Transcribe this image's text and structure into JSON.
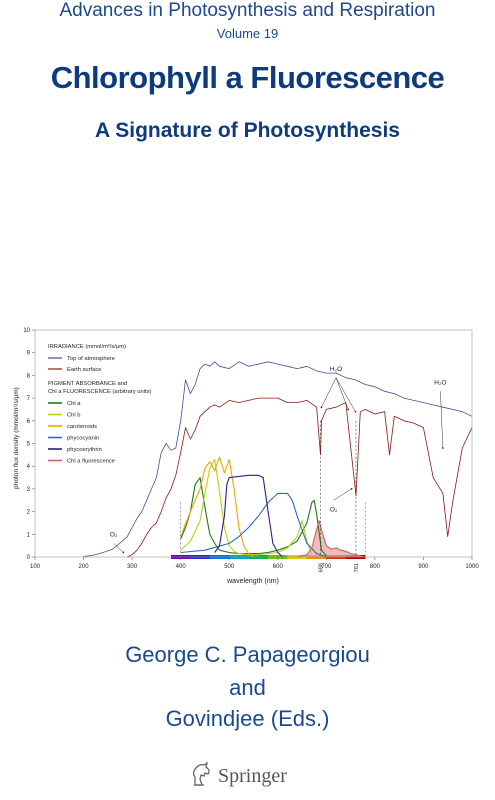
{
  "cover": {
    "series": "Advances in Photosynthesis and Respiration",
    "volume": "Volume 19",
    "title": "Chlorophyll a Fluorescence",
    "subtitle": "A Signature of Photosynthesis",
    "editors": [
      "George C. Papageorgiou",
      "and",
      "Govindjee (Eds.)"
    ],
    "publisher": "Springer",
    "publisher_icon": "springer-horse-logo-icon"
  },
  "chart_data": {
    "type": "line",
    "xlabel": "wavelength (nm)",
    "ylabel": "photon flux density (mmol/m²/s/μm)",
    "xlim": [
      100,
      1000
    ],
    "ylim": [
      0,
      10
    ],
    "xticks": [
      100,
      200,
      300,
      400,
      500,
      600,
      700,
      800,
      900,
      1000
    ],
    "yticks": [
      0,
      1,
      2,
      3,
      4,
      5,
      6,
      7,
      8,
      9,
      10
    ],
    "extra_x_labels": [
      {
        "x": 688,
        "text": "688"
      },
      {
        "x": 761,
        "text": "761"
      }
    ],
    "legend": {
      "placement": "top-left",
      "group1_title": "IRRADIANCE (mmol/m²/s/μm)",
      "group2_title_line1": "PIGMENT ABSORBANCE and",
      "group2_title_line2": "Chl a FLUORESCENCE (arbitrary units)"
    },
    "annotations": [
      {
        "text": "H₂O",
        "x": 720,
        "y": 8.2
      },
      {
        "text": "H₂O",
        "x": 935,
        "y": 7.6
      },
      {
        "text": "O₂",
        "x": 715,
        "y": 2.0
      },
      {
        "text": "O₂",
        "x": 262,
        "y": 0.9
      }
    ],
    "series": [
      {
        "name": "Top of atmosphere",
        "group": 1,
        "color": "#4a4aa0",
        "x": [
          200,
          220,
          240,
          260,
          280,
          290,
          300,
          310,
          320,
          330,
          340,
          350,
          360,
          370,
          380,
          390,
          400,
          410,
          420,
          430,
          440,
          450,
          460,
          470,
          480,
          500,
          520,
          540,
          560,
          580,
          600,
          620,
          640,
          660,
          680,
          700,
          720,
          740,
          760,
          780,
          800,
          820,
          840,
          860,
          880,
          900,
          920,
          940,
          960,
          980,
          1000
        ],
        "y": [
          0.02,
          0.08,
          0.2,
          0.35,
          0.7,
          0.9,
          1.3,
          1.7,
          2.0,
          2.5,
          3.0,
          3.5,
          4.6,
          5.0,
          4.7,
          4.8,
          6.0,
          7.8,
          7.2,
          7.6,
          8.3,
          8.5,
          8.4,
          8.6,
          8.4,
          8.3,
          8.6,
          8.4,
          8.5,
          8.6,
          8.5,
          8.4,
          8.3,
          8.4,
          8.2,
          8.1,
          8.1,
          7.9,
          7.8,
          7.6,
          7.5,
          7.3,
          7.2,
          7.0,
          6.9,
          6.8,
          6.7,
          6.6,
          6.5,
          6.4,
          6.2
        ]
      },
      {
        "name": "Earth surface",
        "group": 1,
        "color": "#8b1a10",
        "x": [
          290,
          300,
          310,
          320,
          330,
          340,
          350,
          360,
          370,
          380,
          390,
          400,
          410,
          420,
          430,
          440,
          450,
          460,
          470,
          480,
          500,
          520,
          540,
          560,
          580,
          600,
          620,
          640,
          660,
          680,
          688,
          690,
          700,
          720,
          740,
          761,
          770,
          780,
          800,
          820,
          830,
          840,
          860,
          880,
          900,
          920,
          940,
          950,
          960,
          980,
          1000
        ],
        "y": [
          0.0,
          0.1,
          0.3,
          0.6,
          1.0,
          1.3,
          1.5,
          2.0,
          2.6,
          3.0,
          3.6,
          4.6,
          5.7,
          5.2,
          5.6,
          6.2,
          6.4,
          6.6,
          6.7,
          6.6,
          6.9,
          6.8,
          6.9,
          7.0,
          7.0,
          7.0,
          6.8,
          6.8,
          6.9,
          6.6,
          4.5,
          6.0,
          6.5,
          6.6,
          6.8,
          2.7,
          6.4,
          6.5,
          6.3,
          6.4,
          4.5,
          6.2,
          6.0,
          5.9,
          5.7,
          3.5,
          2.8,
          0.9,
          2.4,
          4.8,
          5.7
        ]
      },
      {
        "name": "Chl a",
        "group": 2,
        "color": "#1e7a1e",
        "x": [
          400,
          410,
          420,
          430,
          440,
          450,
          460,
          470,
          480,
          500,
          520,
          540,
          560,
          580,
          600,
          620,
          640,
          660,
          670,
          675,
          680,
          690,
          700
        ],
        "y": [
          0.8,
          1.3,
          2.0,
          3.2,
          3.5,
          2.2,
          1.0,
          0.6,
          0.3,
          0.2,
          0.15,
          0.15,
          0.15,
          0.2,
          0.3,
          0.45,
          0.7,
          1.5,
          2.4,
          2.5,
          1.9,
          0.3,
          0.05
        ]
      },
      {
        "name": "Chl b",
        "group": 2,
        "color": "#b8d40a",
        "x": [
          400,
          420,
          440,
          450,
          460,
          470,
          480,
          490,
          500,
          510,
          520,
          540,
          560,
          580,
          600,
          620,
          640,
          650,
          660,
          670
        ],
        "y": [
          0.3,
          0.7,
          1.6,
          2.8,
          3.9,
          4.3,
          2.9,
          1.3,
          0.5,
          0.25,
          0.15,
          0.1,
          0.1,
          0.15,
          0.2,
          0.4,
          0.9,
          1.6,
          0.7,
          0.1
        ]
      },
      {
        "name": "carotenoids",
        "group": 2,
        "color": "#f0a500",
        "x": [
          400,
          420,
          440,
          450,
          460,
          470,
          480,
          490,
          500,
          510,
          520,
          530,
          540,
          550
        ],
        "y": [
          0.9,
          2.0,
          3.0,
          3.9,
          4.2,
          3.8,
          4.4,
          3.7,
          4.3,
          3.0,
          1.3,
          0.5,
          0.15,
          0.0
        ]
      },
      {
        "name": "phycocyanin",
        "group": 2,
        "color": "#2e6bb8",
        "x": [
          400,
          450,
          500,
          520,
          540,
          560,
          580,
          600,
          620,
          630,
          640,
          660,
          680,
          700
        ],
        "y": [
          0.2,
          0.3,
          0.6,
          0.9,
          1.3,
          1.8,
          2.4,
          2.8,
          2.8,
          2.5,
          1.8,
          0.6,
          0.15,
          0.0
        ]
      },
      {
        "name": "phycoerythrin",
        "group": 2,
        "color": "#2a1e8c",
        "x": [
          470,
          480,
          490,
          495,
          500,
          520,
          540,
          560,
          570,
          580,
          590,
          600,
          610
        ],
        "y": [
          0.2,
          0.5,
          1.8,
          3.2,
          3.5,
          3.55,
          3.6,
          3.6,
          3.5,
          2.0,
          0.6,
          0.2,
          0.0
        ]
      },
      {
        "name": "Chl a fluorescence",
        "group": 2,
        "color": "#d46060",
        "x": [
          640,
          660,
          670,
          680,
          685,
          690,
          700,
          710,
          720,
          730,
          740,
          750,
          760,
          780
        ],
        "y": [
          0.0,
          0.1,
          0.4,
          1.2,
          1.6,
          1.2,
          0.5,
          0.35,
          0.4,
          0.3,
          0.25,
          0.15,
          0.1,
          0.0
        ]
      }
    ]
  }
}
